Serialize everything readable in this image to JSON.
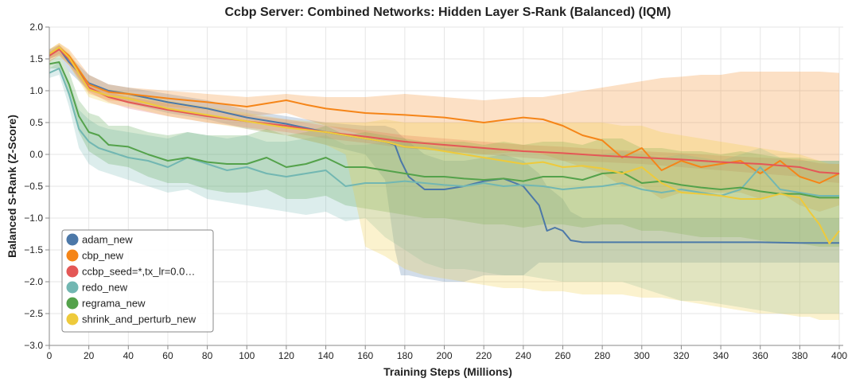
{
  "chart_data": {
    "type": "line",
    "title": "Ccbp Server: Combined Networks: Hidden Layer S-Rank (Balanced) (IQM)",
    "xlabel": "Training Steps (Millions)",
    "ylabel": "Balanced S-Rank (Z-Score)",
    "xlim": [
      0,
      402
    ],
    "ylim": [
      -3.0,
      2.0
    ],
    "xticks": [
      0,
      20,
      40,
      60,
      80,
      100,
      120,
      140,
      160,
      180,
      200,
      220,
      240,
      260,
      280,
      300,
      320,
      340,
      360,
      380,
      400
    ],
    "yticks": [
      2.0,
      1.5,
      1.0,
      0.5,
      0.0,
      -0.5,
      -1.0,
      -1.5,
      -2.0,
      -2.5,
      -3.0
    ],
    "xtick_labels": [
      "0",
      "20",
      "40",
      "60",
      "80",
      "100",
      "120",
      "140",
      "160",
      "180",
      "200",
      "220",
      "240",
      "260",
      "280",
      "300",
      "320",
      "340",
      "360",
      "380",
      "400"
    ],
    "ytick_labels": [
      "2.0",
      "1.5",
      "1.0",
      "0.5",
      "0.0",
      "−0.5",
      "−1.0",
      "−1.5",
      "−2.0",
      "−2.5",
      "−3.0"
    ],
    "grid": true,
    "legend_position": "bottom-left",
    "series": [
      {
        "name": "adam_new",
        "color": "#4c78a8",
        "x": [
          0,
          5,
          10,
          20,
          30,
          40,
          60,
          80,
          100,
          120,
          140,
          160,
          170,
          175,
          178,
          182,
          190,
          200,
          210,
          220,
          230,
          240,
          248,
          252,
          256,
          260,
          264,
          270,
          280,
          300,
          320,
          340,
          360,
          380,
          400
        ],
        "y": [
          1.58,
          1.66,
          1.45,
          1.12,
          1.0,
          0.95,
          0.82,
          0.72,
          0.58,
          0.48,
          0.35,
          0.25,
          0.2,
          0.15,
          -0.1,
          -0.35,
          -0.55,
          -0.55,
          -0.5,
          -0.42,
          -0.38,
          -0.5,
          -0.8,
          -1.2,
          -1.15,
          -1.2,
          -1.35,
          -1.38,
          -1.38,
          -1.38,
          -1.38,
          -1.38,
          -1.38,
          -1.39,
          -1.39
        ],
        "lower": [
          1.5,
          1.55,
          1.3,
          1.0,
          0.9,
          0.8,
          0.65,
          0.55,
          0.4,
          0.3,
          0.15,
          0.0,
          -0.4,
          -1.5,
          -1.9,
          -1.9,
          -1.95,
          -2.0,
          -2.0,
          -1.9,
          -1.9,
          -1.9,
          -1.7,
          -1.7,
          -1.7,
          -1.7,
          -1.7,
          -1.7,
          -1.7,
          -1.7,
          -1.7,
          -1.7,
          -1.7,
          -1.7,
          -1.7
        ],
        "upper": [
          1.65,
          1.72,
          1.55,
          1.25,
          1.1,
          1.05,
          0.95,
          0.85,
          0.7,
          0.6,
          0.5,
          0.45,
          0.45,
          0.4,
          0.3,
          0.2,
          0.0,
          -0.1,
          -0.1,
          -0.05,
          0.0,
          -0.1,
          -0.3,
          -0.5,
          -0.6,
          -0.7,
          -0.9,
          -1.0,
          -1.0,
          -1.0,
          -1.0,
          -1.0,
          -1.0,
          -1.0,
          -1.0
        ]
      },
      {
        "name": "cbp_new",
        "color": "#f58518",
        "x": [
          0,
          5,
          10,
          20,
          30,
          40,
          60,
          80,
          100,
          120,
          130,
          140,
          160,
          180,
          200,
          220,
          240,
          250,
          260,
          270,
          280,
          290,
          300,
          310,
          320,
          330,
          340,
          350,
          360,
          370,
          380,
          390,
          400
        ],
        "y": [
          1.55,
          1.68,
          1.55,
          1.1,
          0.98,
          0.95,
          0.88,
          0.82,
          0.75,
          0.85,
          0.78,
          0.72,
          0.65,
          0.62,
          0.58,
          0.5,
          0.58,
          0.55,
          0.45,
          0.3,
          0.22,
          -0.05,
          0.1,
          -0.25,
          -0.1,
          -0.2,
          -0.15,
          -0.1,
          -0.3,
          -0.1,
          -0.35,
          -0.45,
          -0.3
        ],
        "lower": [
          1.45,
          1.55,
          1.4,
          0.95,
          0.85,
          0.82,
          0.75,
          0.7,
          0.6,
          0.65,
          0.55,
          0.45,
          0.3,
          0.1,
          0.05,
          0.0,
          0.05,
          0.0,
          -0.1,
          -0.2,
          -0.3,
          -0.5,
          -0.5,
          -0.7,
          -0.6,
          -0.6,
          -0.6,
          -0.6,
          -0.7,
          -0.6,
          -0.8,
          -0.9,
          -0.8
        ],
        "upper": [
          1.65,
          1.75,
          1.65,
          1.25,
          1.1,
          1.05,
          1.0,
          0.95,
          0.9,
          0.95,
          0.92,
          0.9,
          0.9,
          0.95,
          0.9,
          0.85,
          0.9,
          0.9,
          0.95,
          1.0,
          1.05,
          1.1,
          1.15,
          1.2,
          1.22,
          1.25,
          1.25,
          1.3,
          1.3,
          1.3,
          1.3,
          1.3,
          1.28
        ]
      },
      {
        "name": "ccbp_seed=*,tx_lr=0.0…",
        "color": "#e45756",
        "x": [
          0,
          5,
          10,
          20,
          30,
          40,
          60,
          80,
          100,
          120,
          140,
          160,
          180,
          200,
          220,
          240,
          260,
          280,
          300,
          320,
          340,
          360,
          380,
          390,
          400
        ],
        "y": [
          1.55,
          1.65,
          1.5,
          1.05,
          0.9,
          0.82,
          0.7,
          0.6,
          0.52,
          0.45,
          0.35,
          0.28,
          0.2,
          0.15,
          0.1,
          0.05,
          0.02,
          -0.02,
          -0.05,
          -0.08,
          -0.12,
          -0.15,
          -0.2,
          -0.28,
          -0.3
        ],
        "lower": [
          1.5,
          1.58,
          1.42,
          0.98,
          0.82,
          0.72,
          0.6,
          0.5,
          0.42,
          0.35,
          0.25,
          0.18,
          0.1,
          0.05,
          0.0,
          -0.05,
          -0.1,
          -0.12,
          -0.15,
          -0.2,
          -0.25,
          -0.3,
          -0.35,
          -0.42,
          -0.45
        ],
        "upper": [
          1.6,
          1.72,
          1.58,
          1.12,
          0.98,
          0.9,
          0.8,
          0.7,
          0.62,
          0.55,
          0.45,
          0.38,
          0.3,
          0.25,
          0.2,
          0.15,
          0.12,
          0.08,
          0.05,
          0.02,
          -0.02,
          -0.05,
          -0.08,
          -0.14,
          -0.15
        ]
      },
      {
        "name": "redo_new",
        "color": "#72b7b2",
        "x": [
          0,
          5,
          10,
          15,
          20,
          25,
          30,
          40,
          50,
          60,
          70,
          80,
          90,
          100,
          110,
          120,
          130,
          140,
          150,
          160,
          170,
          180,
          190,
          200,
          210,
          220,
          230,
          240,
          250,
          260,
          270,
          280,
          290,
          300,
          310,
          320,
          330,
          340,
          350,
          360,
          370,
          380,
          390,
          400
        ],
        "y": [
          1.28,
          1.35,
          0.95,
          0.4,
          0.2,
          0.1,
          0.05,
          -0.05,
          -0.1,
          -0.2,
          -0.05,
          -0.15,
          -0.25,
          -0.2,
          -0.3,
          -0.35,
          -0.3,
          -0.25,
          -0.5,
          -0.45,
          -0.45,
          -0.42,
          -0.45,
          -0.48,
          -0.5,
          -0.45,
          -0.5,
          -0.48,
          -0.5,
          -0.55,
          -0.52,
          -0.5,
          -0.45,
          -0.55,
          -0.6,
          -0.55,
          -0.6,
          -0.65,
          -0.55,
          -0.2,
          -0.55,
          -0.6,
          -0.65,
          -0.65
        ],
        "lower": [
          1.2,
          1.25,
          0.75,
          0.1,
          -0.15,
          -0.25,
          -0.3,
          -0.4,
          -0.5,
          -0.6,
          -0.55,
          -0.7,
          -0.75,
          -0.8,
          -0.85,
          -0.9,
          -0.95,
          -0.9,
          -1.05,
          -1.0,
          -1.3,
          -1.5,
          -1.7,
          -1.8,
          -1.8,
          -1.85,
          -1.9,
          -1.9,
          -1.95,
          -2.0,
          -2.0,
          -2.0,
          -2.0,
          -2.1,
          -2.2,
          -2.3,
          -2.3,
          -2.35,
          -2.4,
          -2.45,
          -2.5,
          -2.5,
          -2.5,
          -2.5
        ],
        "upper": [
          1.35,
          1.45,
          1.15,
          0.7,
          0.55,
          0.45,
          0.4,
          0.35,
          0.3,
          0.25,
          0.35,
          0.3,
          0.25,
          0.3,
          0.2,
          0.2,
          0.25,
          0.3,
          0.15,
          0.15,
          0.2,
          0.2,
          0.15,
          0.1,
          0.1,
          0.1,
          0.05,
          0.05,
          0.0,
          0.0,
          0.0,
          0.0,
          0.05,
          0.0,
          -0.05,
          0.0,
          -0.05,
          -0.1,
          0.0,
          0.1,
          -0.05,
          -0.1,
          -0.1,
          -0.1
        ]
      },
      {
        "name": "regrama_new",
        "color": "#54a24b",
        "x": [
          0,
          5,
          10,
          15,
          20,
          25,
          30,
          40,
          50,
          60,
          70,
          80,
          90,
          100,
          110,
          120,
          130,
          140,
          150,
          160,
          170,
          180,
          190,
          200,
          210,
          220,
          230,
          240,
          250,
          260,
          270,
          280,
          290,
          300,
          310,
          320,
          330,
          340,
          350,
          360,
          370,
          380,
          390,
          400
        ],
        "y": [
          1.42,
          1.45,
          1.1,
          0.6,
          0.35,
          0.3,
          0.15,
          0.12,
          0.0,
          -0.1,
          -0.05,
          -0.12,
          -0.15,
          -0.15,
          -0.05,
          -0.2,
          -0.15,
          -0.05,
          -0.2,
          -0.2,
          -0.25,
          -0.3,
          -0.35,
          -0.35,
          -0.38,
          -0.4,
          -0.38,
          -0.42,
          -0.35,
          -0.35,
          -0.4,
          -0.3,
          -0.28,
          -0.45,
          -0.42,
          -0.48,
          -0.52,
          -0.55,
          -0.52,
          -0.58,
          -0.62,
          -0.62,
          -0.68,
          -0.68
        ],
        "lower": [
          1.35,
          1.35,
          0.9,
          0.35,
          0.05,
          -0.05,
          -0.15,
          -0.2,
          -0.35,
          -0.45,
          -0.45,
          -0.55,
          -0.6,
          -0.6,
          -0.55,
          -0.7,
          -0.7,
          -0.65,
          -0.8,
          -0.85,
          -0.9,
          -0.95,
          -1.0,
          -1.0,
          -1.05,
          -1.1,
          -1.1,
          -1.15,
          -1.1,
          -1.1,
          -1.15,
          -1.1,
          -1.1,
          -1.2,
          -1.2,
          -1.25,
          -1.3,
          -1.3,
          -1.3,
          -1.35,
          -1.4,
          -1.4,
          -1.45,
          -1.45
        ],
        "upper": [
          1.48,
          1.55,
          1.3,
          0.85,
          0.65,
          0.6,
          0.45,
          0.45,
          0.35,
          0.3,
          0.35,
          0.3,
          0.3,
          0.3,
          0.4,
          0.3,
          0.35,
          0.45,
          0.3,
          0.35,
          0.3,
          0.25,
          0.2,
          0.2,
          0.2,
          0.15,
          0.2,
          0.15,
          0.2,
          0.2,
          0.15,
          0.25,
          0.25,
          0.1,
          0.1,
          0.05,
          0.05,
          0.0,
          0.05,
          0.0,
          -0.05,
          -0.05,
          -0.1,
          -0.1
        ]
      },
      {
        "name": "shrink_and_perturb_new",
        "color": "#eeca3b",
        "x": [
          0,
          5,
          10,
          20,
          30,
          40,
          60,
          80,
          100,
          120,
          140,
          150,
          160,
          170,
          180,
          190,
          200,
          210,
          220,
          230,
          240,
          250,
          260,
          270,
          280,
          290,
          300,
          310,
          320,
          330,
          340,
          350,
          360,
          370,
          380,
          385,
          390,
          395,
          400
        ],
        "y": [
          1.58,
          1.68,
          1.52,
          1.02,
          0.92,
          0.88,
          0.72,
          0.62,
          0.52,
          0.42,
          0.35,
          0.3,
          0.25,
          0.2,
          0.12,
          0.1,
          0.05,
          0.0,
          -0.05,
          -0.1,
          -0.15,
          -0.12,
          -0.2,
          -0.18,
          -0.22,
          -0.3,
          -0.2,
          -0.45,
          -0.6,
          -0.62,
          -0.65,
          -0.7,
          -0.7,
          -0.62,
          -0.68,
          -0.9,
          -1.1,
          -1.4,
          -1.2
        ],
        "lower": [
          1.5,
          1.55,
          1.4,
          0.9,
          0.8,
          0.75,
          0.6,
          0.5,
          0.4,
          0.3,
          0.15,
          0.0,
          -1.45,
          -1.6,
          -1.8,
          -1.9,
          -1.95,
          -2.0,
          -2.05,
          -2.1,
          -2.1,
          -2.15,
          -2.15,
          -2.2,
          -2.2,
          -2.2,
          -2.25,
          -2.25,
          -2.3,
          -2.35,
          -2.4,
          -2.45,
          -2.5,
          -2.5,
          -2.55,
          -2.55,
          -2.6,
          -2.6,
          -2.6
        ],
        "upper": [
          1.65,
          1.75,
          1.62,
          1.12,
          1.02,
          0.98,
          0.85,
          0.75,
          0.65,
          0.55,
          0.5,
          0.5,
          0.5,
          0.55,
          0.5,
          0.5,
          0.5,
          0.5,
          0.5,
          0.5,
          0.5,
          0.5,
          0.5,
          0.5,
          0.5,
          0.45,
          0.45,
          0.35,
          0.3,
          0.25,
          0.2,
          0.15,
          0.1,
          0.05,
          0.0,
          -0.05,
          -0.1,
          -0.15,
          -0.15
        ]
      }
    ]
  }
}
